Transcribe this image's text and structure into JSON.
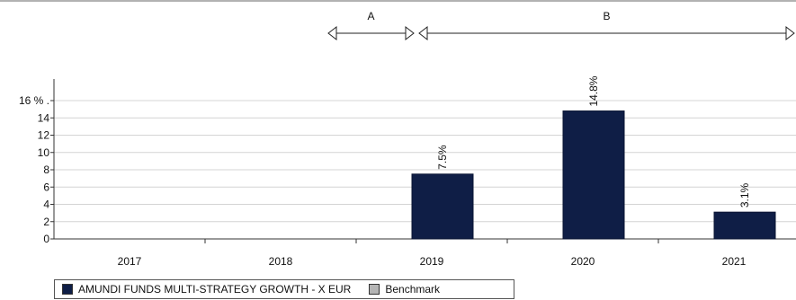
{
  "chart_data": {
    "type": "bar",
    "categories": [
      "2017",
      "2018",
      "2019",
      "2020",
      "2021"
    ],
    "series": [
      {
        "name": "AMUNDI FUNDS MULTI-STRATEGY GROWTH - X EUR",
        "color": "#0f1e46",
        "values": [
          null,
          null,
          7.5,
          14.8,
          3.1
        ]
      },
      {
        "name": "Benchmark",
        "color": "#b4b4b4",
        "values": [
          null,
          null,
          null,
          null,
          null
        ]
      }
    ],
    "data_labels": [
      "",
      "",
      "7.5%",
      "14.8%",
      "3.1%"
    ],
    "yticks": [
      "0",
      "2",
      "4",
      "6",
      "8",
      "10",
      "12",
      "14",
      "16 % ."
    ],
    "ylim": [
      0,
      16
    ],
    "grid": true,
    "periods": [
      {
        "label": "A",
        "from": "2019-left",
        "to": "2019"
      },
      {
        "label": "B",
        "from": "2019",
        "to": "2021-end"
      }
    ],
    "legend": "bottom-left"
  }
}
